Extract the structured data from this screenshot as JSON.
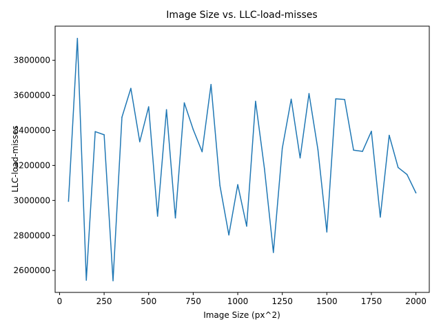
{
  "chart_data": {
    "type": "line",
    "title": "Image Size vs. LLC-load-misses",
    "xlabel": "Image Size (px^2)",
    "ylabel": "LLC-load-misses",
    "xlim": [
      -25,
      2075
    ],
    "ylim": [
      2475000,
      3995000
    ],
    "xticks": [
      0,
      250,
      500,
      750,
      1000,
      1250,
      1500,
      1750,
      2000
    ],
    "yticks": [
      2600000,
      2800000,
      3000000,
      3200000,
      3400000,
      3600000,
      3800000
    ],
    "grid": false,
    "line_color": "#1f77b4",
    "series": [
      {
        "x": [
          50,
          100,
          150,
          200,
          250,
          300,
          350,
          400,
          450,
          500,
          550,
          600,
          650,
          700,
          750,
          800,
          850,
          900,
          950,
          1000,
          1050,
          1100,
          1150,
          1200,
          1250,
          1300,
          1350,
          1400,
          1450,
          1500,
          1550,
          1600,
          1650,
          1700,
          1750,
          1800,
          1850,
          1900,
          1950,
          2000
        ],
        "y": [
          2995000,
          3925000,
          2545000,
          3393000,
          3375000,
          2542000,
          3475000,
          3640000,
          3335000,
          3535000,
          2910000,
          3518000,
          2900000,
          3557000,
          3405000,
          3278000,
          3662000,
          3085000,
          2803000,
          3090000,
          2853000,
          3566000,
          3180000,
          2703000,
          3298000,
          3578000,
          3243000,
          3610000,
          3290000,
          2820000,
          3580000,
          3576000,
          3287000,
          3280000,
          3395000,
          2905000,
          3372000,
          3188000,
          3148000,
          3043000
        ]
      }
    ]
  }
}
